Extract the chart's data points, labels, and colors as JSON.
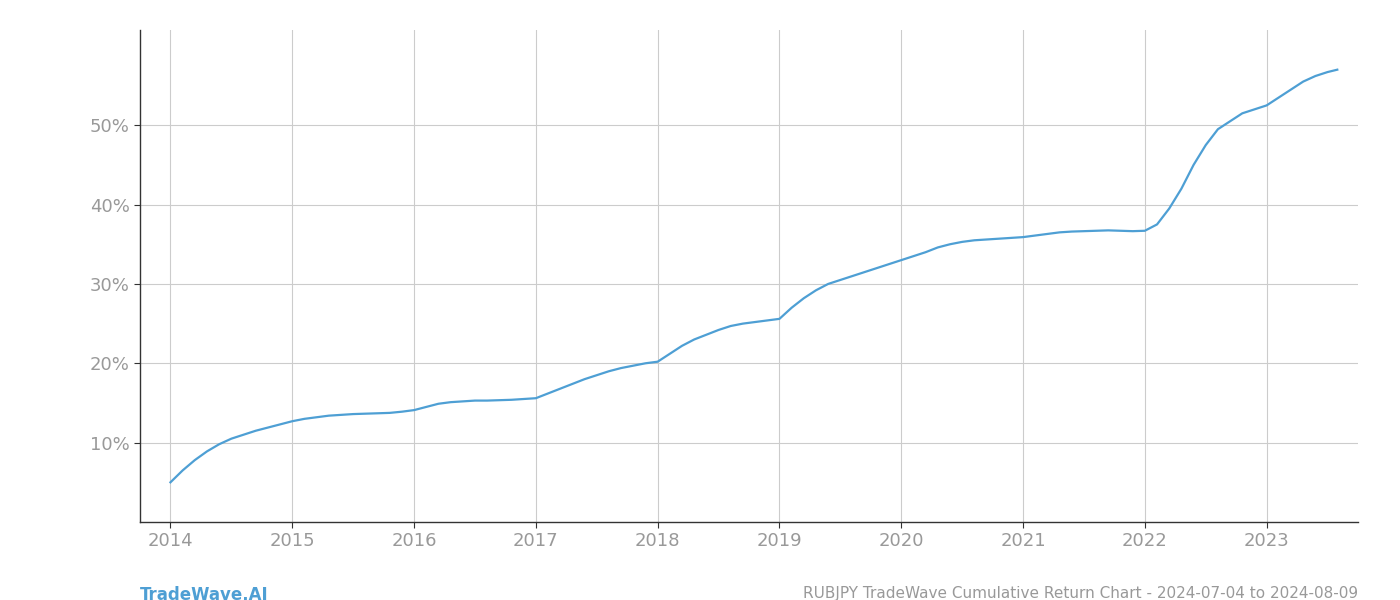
{
  "title": "RUBJPY TradeWave Cumulative Return Chart - 2024-07-04 to 2024-08-09",
  "watermark": "TradeWave.AI",
  "line_color": "#4e9fd4",
  "background_color": "#ffffff",
  "grid_color": "#cccccc",
  "axis_color": "#333333",
  "axis_label_color": "#999999",
  "x_values": [
    2014.0,
    2014.1,
    2014.2,
    2014.3,
    2014.4,
    2014.5,
    2014.6,
    2014.7,
    2014.8,
    2014.9,
    2015.0,
    2015.1,
    2015.2,
    2015.3,
    2015.4,
    2015.5,
    2015.6,
    2015.7,
    2015.8,
    2015.9,
    2016.0,
    2016.1,
    2016.2,
    2016.3,
    2016.4,
    2016.5,
    2016.6,
    2016.7,
    2016.8,
    2016.9,
    2017.0,
    2017.1,
    2017.2,
    2017.3,
    2017.4,
    2017.5,
    2017.6,
    2017.7,
    2017.8,
    2017.9,
    2018.0,
    2018.1,
    2018.2,
    2018.3,
    2018.4,
    2018.5,
    2018.6,
    2018.7,
    2018.8,
    2018.9,
    2019.0,
    2019.1,
    2019.2,
    2019.3,
    2019.4,
    2019.5,
    2019.6,
    2019.7,
    2019.8,
    2019.9,
    2020.0,
    2020.1,
    2020.2,
    2020.3,
    2020.4,
    2020.5,
    2020.6,
    2020.7,
    2020.8,
    2020.9,
    2021.0,
    2021.1,
    2021.2,
    2021.3,
    2021.4,
    2021.5,
    2021.6,
    2021.7,
    2021.8,
    2021.9,
    2022.0,
    2022.1,
    2022.2,
    2022.3,
    2022.4,
    2022.5,
    2022.6,
    2022.7,
    2022.8,
    2022.9,
    2023.0,
    2023.1,
    2023.2,
    2023.3,
    2023.4,
    2023.5,
    2023.58
  ],
  "y_values": [
    5.0,
    6.5,
    7.8,
    8.9,
    9.8,
    10.5,
    11.0,
    11.5,
    11.9,
    12.3,
    12.7,
    13.0,
    13.2,
    13.4,
    13.5,
    13.6,
    13.65,
    13.7,
    13.75,
    13.9,
    14.1,
    14.5,
    14.9,
    15.1,
    15.2,
    15.3,
    15.3,
    15.35,
    15.4,
    15.5,
    15.6,
    16.2,
    16.8,
    17.4,
    18.0,
    18.5,
    19.0,
    19.4,
    19.7,
    20.0,
    20.2,
    21.2,
    22.2,
    23.0,
    23.6,
    24.2,
    24.7,
    25.0,
    25.2,
    25.4,
    25.6,
    27.0,
    28.2,
    29.2,
    30.0,
    30.5,
    31.0,
    31.5,
    32.0,
    32.5,
    33.0,
    33.5,
    34.0,
    34.6,
    35.0,
    35.3,
    35.5,
    35.6,
    35.7,
    35.8,
    35.9,
    36.1,
    36.3,
    36.5,
    36.6,
    36.65,
    36.7,
    36.75,
    36.7,
    36.65,
    36.7,
    37.5,
    39.5,
    42.0,
    45.0,
    47.5,
    49.5,
    50.5,
    51.5,
    52.0,
    52.5,
    53.5,
    54.5,
    55.5,
    56.2,
    56.7,
    57.0
  ],
  "xlim": [
    2013.75,
    2023.75
  ],
  "ylim": [
    0,
    62
  ],
  "yticks": [
    10,
    20,
    30,
    40,
    50
  ],
  "xticks": [
    2014,
    2015,
    2016,
    2017,
    2018,
    2019,
    2020,
    2021,
    2022,
    2023
  ],
  "line_width": 1.6,
  "tick_fontsize": 13,
  "title_fontsize": 11,
  "watermark_fontsize": 12
}
